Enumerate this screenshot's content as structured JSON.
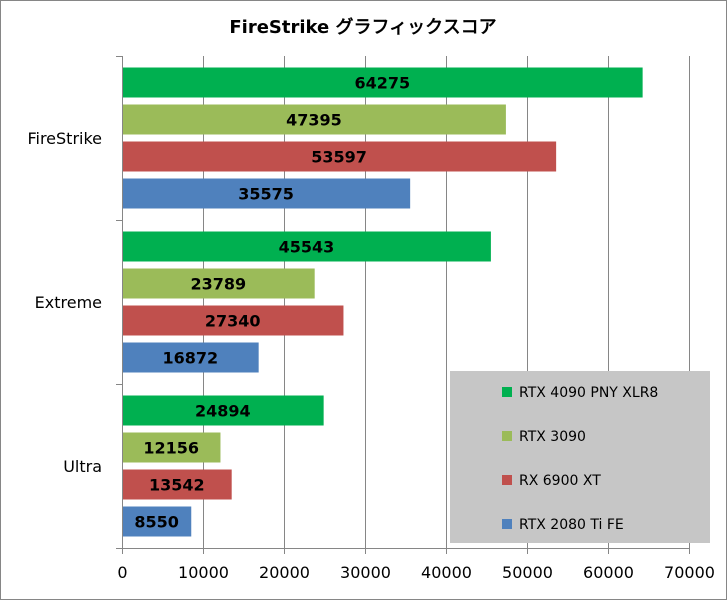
{
  "chart_data": {
    "type": "bar",
    "orientation": "horizontal",
    "title": "FireStrike グラフィックスコア",
    "xlabel": "",
    "ylabel": "",
    "categories": [
      "FireStrike",
      "Extreme",
      "Ultra"
    ],
    "series": [
      {
        "name": "RTX 4090 PNY XLR8",
        "color": "#00b050",
        "values": [
          64275,
          45543,
          24894
        ]
      },
      {
        "name": "RTX 3090",
        "color": "#9bbb59",
        "values": [
          47395,
          23789,
          12156
        ]
      },
      {
        "name": "RX 6900 XT",
        "color": "#c0504d",
        "values": [
          53597,
          27340,
          13542
        ]
      },
      {
        "name": "RTX 2080 Ti FE",
        "color": "#4f81bd",
        "values": [
          35575,
          16872,
          8550
        ]
      }
    ],
    "xlim": [
      0,
      70000
    ],
    "xticks": [
      "0",
      "10000",
      "20000",
      "30000",
      "40000",
      "50000",
      "60000",
      "70000"
    ],
    "grid": true,
    "legend_position": "bottom-right",
    "data_labels": true
  }
}
